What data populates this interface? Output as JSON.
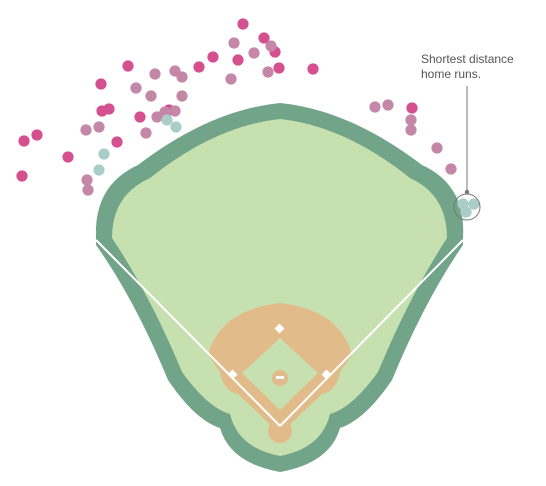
{
  "chart_data": {
    "type": "scatter",
    "description_text": "",
    "annotation": {
      "line1": "Shortest distance",
      "line2": "home runs."
    },
    "colors": {
      "outfield_wall": "#72a48a",
      "grass": "#c7e0b0",
      "infield_dirt": "#e2bb8a",
      "foul_lines": "#ffffff",
      "long_home_run": "#d4508f",
      "medium_home_run": "#c487a8",
      "short_home_run": "#a9cdc8",
      "callout": "#777777"
    },
    "series": [
      {
        "category": "long",
        "points": [
          [
            243,
            24
          ],
          [
            264,
            38
          ],
          [
            213,
            57
          ],
          [
            275,
            52
          ],
          [
            313,
            69
          ],
          [
            199,
            67
          ],
          [
            128,
            66
          ],
          [
            101,
            84
          ],
          [
            109,
            109
          ],
          [
            140,
            117
          ],
          [
            117,
            142
          ],
          [
            37,
            135
          ],
          [
            24,
            141
          ],
          [
            68,
            157
          ],
          [
            22,
            176
          ],
          [
            412,
            108
          ],
          [
            238,
            60
          ],
          [
            279,
            68
          ],
          [
            102,
            111
          ],
          [
            169,
            110
          ]
        ]
      },
      {
        "category": "medium",
        "points": [
          [
            234,
            43
          ],
          [
            254,
            53
          ],
          [
            271,
            46
          ],
          [
            231,
            79
          ],
          [
            268,
            72
          ],
          [
            155,
            74
          ],
          [
            175,
            71
          ],
          [
            182,
            77
          ],
          [
            136,
            88
          ],
          [
            151,
            96
          ],
          [
            182,
            96
          ],
          [
            157,
            117
          ],
          [
            175,
            111
          ],
          [
            146,
            133
          ],
          [
            86,
            130
          ],
          [
            99,
            127
          ],
          [
            87,
            180
          ],
          [
            88,
            190
          ],
          [
            375,
            107
          ],
          [
            388,
            105
          ],
          [
            411,
            120
          ],
          [
            411,
            130
          ],
          [
            437,
            148
          ],
          [
            451,
            169
          ],
          [
            165,
            112
          ]
        ]
      },
      {
        "category": "short",
        "points": [
          [
            176,
            127
          ],
          [
            167,
            120
          ],
          [
            104,
            154
          ],
          [
            99,
            170
          ],
          [
            463,
            204
          ],
          [
            474,
            204
          ],
          [
            466,
            212
          ]
        ]
      }
    ]
  }
}
